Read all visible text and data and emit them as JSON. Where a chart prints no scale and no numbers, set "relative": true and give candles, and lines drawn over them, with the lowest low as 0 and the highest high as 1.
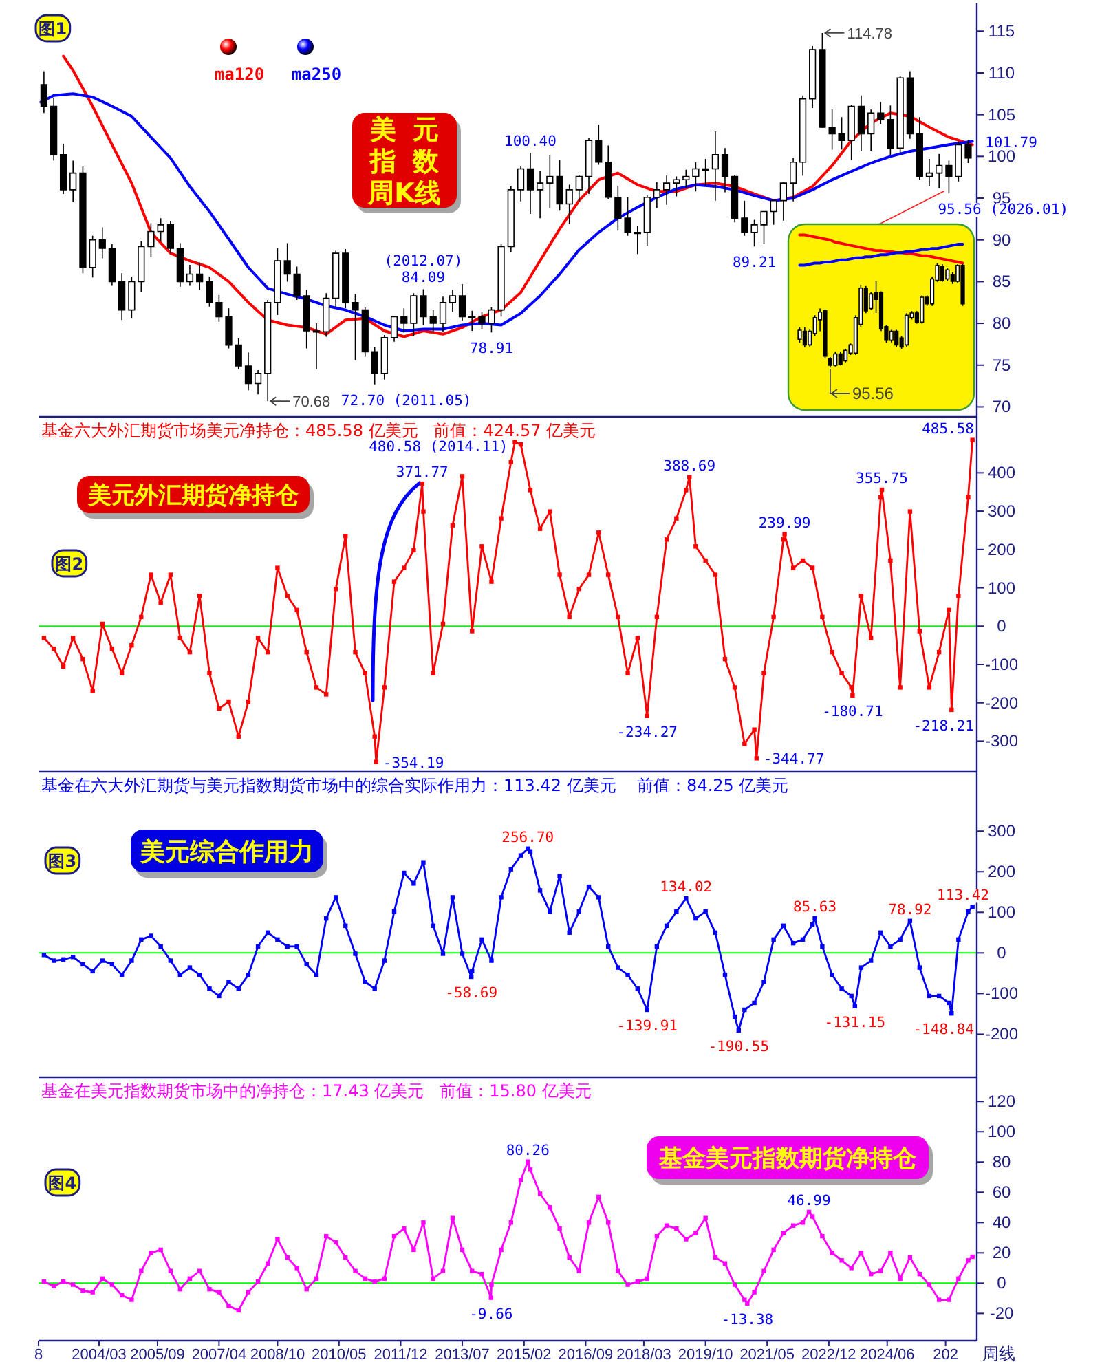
{
  "chart_data": [
    {
      "type": "candlestick",
      "title": "美元指数周K线",
      "legend": "top left",
      "tick_labels": "y",
      "xlim": [
        "2002-08-11",
        "2026-09-20"
      ],
      "ylim": [
        68.8,
        118.4
      ],
      "yticks": [
        70,
        75,
        80,
        85,
        90,
        95,
        100,
        105,
        110,
        115
      ],
      "x": [
        "2002-10",
        "2003-01",
        "2003-04",
        "2003-07",
        "2003-10",
        "2004-01",
        "2004-04",
        "2004-07",
        "2004-10",
        "2005-01",
        "2005-04",
        "2005-07",
        "2005-10",
        "2006-01",
        "2006-04",
        "2006-07",
        "2006-10",
        "2007-01",
        "2007-04",
        "2007-07",
        "2007-10",
        "2008-01",
        "2008-04",
        "2008-07",
        "2008-10",
        "2009-01",
        "2009-04",
        "2009-07",
        "2009-10",
        "2010-01",
        "2010-04",
        "2010-07",
        "2010-10",
        "2011-01",
        "2011-04",
        "2011-07",
        "2011-10",
        "2012-01",
        "2012-04",
        "2012-07",
        "2012-10",
        "2013-01",
        "2013-04",
        "2013-07",
        "2013-10",
        "2014-01",
        "2014-04",
        "2014-07",
        "2014-10",
        "2015-01",
        "2015-04",
        "2015-07",
        "2015-10",
        "2016-01",
        "2016-04",
        "2016-07",
        "2016-10",
        "2017-01",
        "2017-04",
        "2017-07",
        "2017-10",
        "2018-01",
        "2018-04",
        "2018-07",
        "2018-10",
        "2019-01",
        "2019-04",
        "2019-07",
        "2019-10",
        "2020-01",
        "2020-04",
        "2020-07",
        "2020-10",
        "2021-01",
        "2021-04",
        "2021-07",
        "2021-10",
        "2022-01",
        "2022-04",
        "2022-07",
        "2022-10",
        "2023-01",
        "2023-04",
        "2023-07",
        "2023-10",
        "2024-01",
        "2024-04",
        "2024-07",
        "2024-10",
        "2025-01",
        "2025-04",
        "2025-07",
        "2025-10",
        "2026-01",
        "2026-04",
        "2026-07"
      ],
      "ohlc": [
        [
          108.6,
          110.2,
          105.2,
          106
        ],
        [
          106,
          107,
          99.5,
          100.2
        ],
        [
          100.2,
          101.5,
          95.5,
          96
        ],
        [
          96,
          99.5,
          94.5,
          98
        ],
        [
          98,
          98.8,
          86,
          86.7
        ],
        [
          86.7,
          90.5,
          85.5,
          90
        ],
        [
          90,
          91.5,
          87.8,
          89
        ],
        [
          89,
          89.5,
          84.5,
          85
        ],
        [
          85,
          86,
          80.4,
          81.6
        ],
        [
          81.6,
          85.6,
          80.6,
          85
        ],
        [
          85,
          89.8,
          83.8,
          89.2
        ],
        [
          89.2,
          92,
          88,
          91
        ],
        [
          91,
          92.6,
          89.8,
          91.8
        ],
        [
          91.8,
          92.2,
          88.4,
          89
        ],
        [
          89,
          89.6,
          84.4,
          85
        ],
        [
          85,
          87,
          84.5,
          85.9
        ],
        [
          85.9,
          87.3,
          84,
          85
        ],
        [
          85,
          85.6,
          82,
          82.5
        ],
        [
          82.5,
          83.4,
          80.2,
          80.8
        ],
        [
          80.8,
          81.8,
          77,
          77.4
        ],
        [
          77.4,
          78.2,
          74.5,
          74.9
        ],
        [
          74.9,
          76.5,
          72,
          72.8
        ],
        [
          72.8,
          74.4,
          71.5,
          74
        ],
        [
          74,
          82.8,
          70.68,
          82.5
        ],
        [
          82.5,
          89,
          81,
          87.5
        ],
        [
          87.5,
          89.6,
          85,
          85.9
        ],
        [
          85.9,
          86.8,
          82.8,
          83.3
        ],
        [
          83.3,
          84,
          77,
          79.1
        ],
        [
          79.1,
          80,
          74.5,
          79
        ],
        [
          79,
          83.6,
          78.4,
          83
        ],
        [
          83,
          88.7,
          82,
          88.4
        ],
        [
          88.4,
          88.9,
          81.8,
          82.5
        ],
        [
          82.5,
          83.5,
          75.6,
          81.6
        ],
        [
          81.6,
          81.9,
          76,
          76.6
        ],
        [
          76.6,
          77.2,
          72.7,
          74
        ],
        [
          74,
          78.6,
          73.3,
          78.3
        ],
        [
          78.3,
          80.9,
          77.8,
          80.8
        ],
        [
          80.8,
          81.8,
          78.9,
          80
        ],
        [
          80,
          83.6,
          78.5,
          83.3
        ],
        [
          83.3,
          84.09,
          79.8,
          80.8
        ],
        [
          80.8,
          81.6,
          78.9,
          80
        ],
        [
          80,
          83.2,
          79,
          82.5
        ],
        [
          82.5,
          84,
          81.4,
          83.3
        ],
        [
          83.3,
          84.7,
          80.3,
          80.8
        ],
        [
          80.8,
          81.5,
          79.1,
          80.8
        ],
        [
          80.8,
          81.4,
          79.3,
          80
        ],
        [
          80,
          81.9,
          78.91,
          81.6
        ],
        [
          81.6,
          89.5,
          80.8,
          89.2
        ],
        [
          89.2,
          96.4,
          88.5,
          96
        ],
        [
          96,
          98.8,
          94.6,
          98.5
        ],
        [
          98.5,
          100.4,
          93.1,
          96
        ],
        [
          96,
          98.3,
          92.6,
          96.8
        ],
        [
          96.8,
          100.2,
          93.8,
          97.6
        ],
        [
          97.6,
          99.6,
          93.5,
          94.3
        ],
        [
          94.3,
          96.6,
          91.9,
          96
        ],
        [
          96,
          97.8,
          94.5,
          97.6
        ],
        [
          97.6,
          102.2,
          95.5,
          101.9
        ],
        [
          101.9,
          103.8,
          99,
          99.3
        ],
        [
          99.3,
          101.3,
          94.9,
          95.1
        ],
        [
          95.1,
          96.5,
          91.1,
          92.6
        ],
        [
          92.6,
          95.1,
          90.5,
          90.9
        ],
        [
          90.9,
          91.7,
          88.3,
          90.9
        ],
        [
          90.9,
          95.4,
          89.3,
          95.1
        ],
        [
          95.1,
          96.9,
          93.8,
          96
        ],
        [
          96,
          97.7,
          94.2,
          96.8
        ],
        [
          96.8,
          97.6,
          95.2,
          97.2
        ],
        [
          97.2,
          98.4,
          96.2,
          97.6
        ],
        [
          97.6,
          99.3,
          95.8,
          98.5
        ],
        [
          98.5,
          99.7,
          96.5,
          98.5
        ],
        [
          98.5,
          102.99,
          94.7,
          100.2
        ],
        [
          100.2,
          101,
          95.7,
          97.6
        ],
        [
          97.6,
          97.8,
          92.1,
          92.6
        ],
        [
          92.6,
          94.7,
          90.5,
          90.9
        ],
        [
          90.9,
          92.4,
          89.21,
          91.8
        ],
        [
          91.8,
          93.4,
          89.5,
          93.4
        ],
        [
          93.4,
          94.8,
          91.8,
          94.7
        ],
        [
          94.7,
          96.9,
          92.3,
          96.8
        ],
        [
          96.8,
          99.8,
          94.6,
          99.3
        ],
        [
          99.3,
          107.3,
          97.7,
          106.9
        ],
        [
          106.9,
          113.2,
          105.8,
          112.8
        ],
        [
          112.8,
          114.78,
          103.4,
          103.5
        ],
        [
          103.5,
          105.6,
          100.8,
          102.7
        ],
        [
          102.7,
          104.7,
          100.8,
          101.9
        ],
        [
          101.9,
          106.2,
          99.6,
          106
        ],
        [
          106,
          107.3,
          100.6,
          102.7
        ],
        [
          102.7,
          105.6,
          100.6,
          105.2
        ],
        [
          105.2,
          106.5,
          103.9,
          104.4
        ],
        [
          104.4,
          106.1,
          100.2,
          101
        ],
        [
          101,
          109.6,
          100.4,
          109.4
        ],
        [
          109.4,
          110.2,
          102.1,
          102.7
        ],
        [
          102.7,
          104.7,
          97.2,
          97.6
        ],
        [
          97.6,
          99.7,
          96.4,
          98
        ],
        [
          98,
          100.3,
          96.2,
          98.9
        ],
        [
          98.9,
          99.5,
          95.56,
          97.6
        ],
        [
          97.6,
          101.8,
          97,
          101.4
        ],
        [
          101.4,
          102,
          99.2,
          99.8
        ]
      ],
      "series": [
        {
          "name": "ma120",
          "type": "line",
          "color": "#ff0000",
          "x": [
            "2003-04",
            "2003-07",
            "2004-01",
            "2004-07",
            "2005-01",
            "2005-07",
            "2006-01",
            "2006-07",
            "2007-01",
            "2007-07",
            "2008-01",
            "2008-07",
            "2009-01",
            "2009-07",
            "2010-01",
            "2010-07",
            "2011-01",
            "2011-07",
            "2012-01",
            "2012-07",
            "2013-01",
            "2013-07",
            "2014-01",
            "2014-07",
            "2015-01",
            "2015-07",
            "2016-01",
            "2016-07",
            "2017-01",
            "2017-07",
            "2018-01",
            "2018-07",
            "2019-01",
            "2019-07",
            "2020-01",
            "2020-07",
            "2021-01",
            "2021-07",
            "2022-01",
            "2022-07",
            "2023-01",
            "2023-07",
            "2024-01",
            "2024-07",
            "2025-01",
            "2025-07",
            "2026-01",
            "2026-08-10"
          ],
          "values": [
            112,
            110.3,
            106,
            101.4,
            96.8,
            90.9,
            88.4,
            87.5,
            86.7,
            85,
            82.5,
            80.4,
            79.8,
            79.5,
            78.7,
            80.4,
            80.6,
            79.1,
            78.4,
            79.1,
            78.7,
            79.5,
            80.8,
            81.6,
            83.7,
            87.5,
            91.3,
            94.7,
            97.2,
            98,
            96.6,
            95.8,
            95.8,
            96.6,
            96.8,
            96.4,
            95.5,
            94.7,
            95.1,
            96.4,
            98.9,
            101.9,
            104,
            105.2,
            104.8,
            103.5,
            102.3,
            101.4
          ]
        },
        {
          "name": "ma250",
          "type": "line",
          "color": "#0000ff",
          "x": [
            "2002-09",
            "2003-01",
            "2003-07",
            "2004-01",
            "2004-07",
            "2005-01",
            "2005-07",
            "2006-01",
            "2006-07",
            "2007-01",
            "2007-07",
            "2008-01",
            "2008-07",
            "2009-01",
            "2009-07",
            "2010-01",
            "2010-07",
            "2011-01",
            "2011-07",
            "2012-01",
            "2012-07",
            "2013-01",
            "2013-07",
            "2014-01",
            "2014-07",
            "2015-01",
            "2015-07",
            "2016-01",
            "2016-07",
            "2017-01",
            "2017-07",
            "2018-01",
            "2018-07",
            "2019-01",
            "2019-07",
            "2020-01",
            "2020-07",
            "2021-01",
            "2021-07",
            "2022-01",
            "2022-07",
            "2023-01",
            "2023-07",
            "2024-01",
            "2024-07",
            "2025-01",
            "2025-07",
            "2026-01",
            "2026-08-10"
          ],
          "values": [
            106.5,
            107.3,
            107.5,
            107.1,
            106,
            104.8,
            102.3,
            99.8,
            96.4,
            93.4,
            90.1,
            86.7,
            84.2,
            83.5,
            82.9,
            82.1,
            81.6,
            80.8,
            79.8,
            79.1,
            79.3,
            79.3,
            79.8,
            80,
            79.8,
            81.2,
            83.3,
            85.9,
            88.8,
            90.9,
            92.6,
            93.9,
            95.1,
            96.1,
            96.6,
            96.4,
            96,
            95.3,
            94.7,
            95,
            96,
            97.2,
            98.2,
            99.2,
            100,
            100.6,
            101,
            101.4,
            101.79
          ]
        }
      ],
      "annotations": [
        "图1",
        {
          "text": "114.78",
          "x": "2022-10",
          "y": 114.78
        },
        {
          "text": "100.40",
          "x": "2015-04",
          "y": 100.4
        },
        {
          "text": "(2012.07)\n84.09",
          "x": "2012-07",
          "y": 84.09
        },
        {
          "text": "78.91",
          "x": "2014-04",
          "y": 78.91
        },
        {
          "text": "70.68",
          "x": "2008-07",
          "y": 70.68
        },
        {
          "text": "72.70 (2011.05)",
          "x": "2011-04",
          "y": 72.7
        },
        {
          "text": "89.21",
          "x": "2021-01",
          "y": 89.21
        },
        {
          "text": "101.79",
          "x": "2026-08-10",
          "y": 101.79
        },
        {
          "text": "95.56 (2026.01)",
          "x": "2026-01",
          "y": 95.56
        }
      ]
    },
    {
      "type": "candlestick",
      "relative": true,
      "categories": [
        null,
        null,
        null,
        null,
        null,
        null,
        null,
        null,
        null,
        null,
        null,
        null,
        null,
        null,
        null,
        null,
        null,
        null,
        null,
        null,
        null,
        null,
        null,
        null,
        null,
        null,
        null,
        null,
        null,
        null,
        null,
        null,
        null
      ],
      "ohlc": [
        [
          0.27,
          0.383,
          0.239,
          0.357
        ],
        [
          0.348,
          0.383,
          0.196,
          0.217
        ],
        [
          0.217,
          0.37,
          0.2,
          0.348
        ],
        [
          0.326,
          0.5,
          0.304,
          0.478
        ],
        [
          0.457,
          0.565,
          0.348,
          0.53
        ],
        [
          0.543,
          0.557,
          0.087,
          0.109
        ],
        [
          0.087,
          0.1,
          0,
          0.022
        ],
        [
          0.022,
          0.15,
          0.01,
          0.13
        ],
        [
          0.13,
          0.15,
          0.02,
          0.03
        ],
        [
          0.065,
          0.18,
          0.05,
          0.165
        ],
        [
          0.139,
          0.23,
          0.12,
          0.217
        ],
        [
          0.139,
          0.5,
          0.12,
          0.478
        ],
        [
          0.413,
          0.791,
          0.391,
          0.761
        ],
        [
          0.761,
          0.78,
          0.52,
          0.543
        ],
        [
          0.565,
          0.72,
          0.55,
          0.704
        ],
        [
          0.717,
          0.826,
          0.522,
          0.652
        ],
        [
          0.717,
          0.73,
          0.35,
          0.37
        ],
        [
          0.391,
          0.41,
          0.239,
          0.261
        ],
        [
          0.261,
          0.36,
          0.24,
          0.348
        ],
        [
          0.348,
          0.36,
          0.2,
          0.217
        ],
        [
          0.283,
          0.3,
          0.18,
          0.196
        ],
        [
          0.217,
          0.52,
          0.2,
          0.5
        ],
        [
          0.478,
          0.54,
          0.46,
          0.522
        ],
        [
          0.522,
          0.54,
          0.42,
          0.435
        ],
        [
          0.435,
          0.69,
          0.42,
          0.674
        ],
        [
          0.674,
          0.69,
          0.59,
          0.609
        ],
        [
          0.609,
          0.87,
          0.59,
          0.848
        ],
        [
          0.835,
          1,
          0.82,
          0.978
        ],
        [
          0.965,
          0.99,
          0.82,
          0.835
        ],
        [
          0.848,
          0.95,
          0.83,
          0.935
        ],
        [
          0.891,
          0.91,
          0.8,
          0.826
        ],
        [
          0.826,
          0.99,
          0.81,
          0.978
        ],
        [
          0.978,
          0.99,
          0.59,
          0.609
        ]
      ],
      "series": [
        {
          "type": "line",
          "color": "#ff0000",
          "values": [
            1.27,
            1.27,
            1.26,
            1.25,
            1.24,
            1.23,
            1.22,
            1.2,
            1.19,
            1.18,
            1.17,
            1.16,
            1.15,
            1.14,
            1.13,
            1.12,
            1.12,
            1.11,
            1.11,
            1.1,
            1.1,
            1.09,
            1.09,
            1.08,
            1.07,
            1.07,
            1.06,
            1.05,
            1.04,
            1.03,
            1.02,
            1.01,
            1
          ]
        },
        {
          "type": "line",
          "color": "#0000ff",
          "values": [
            0.98,
            0.98,
            0.99,
            1,
            1,
            1.01,
            1.01,
            1.02,
            1.03,
            1.03,
            1.04,
            1.05,
            1.05,
            1.06,
            1.06,
            1.07,
            1.08,
            1.08,
            1.09,
            1.1,
            1.1,
            1.11,
            1.11,
            1.12,
            1.13,
            1.13,
            1.14,
            1.14,
            1.15,
            1.16,
            1.17,
            1.18,
            1.18
          ]
        }
      ],
      "annotations": [
        "95.56"
      ]
    },
    {
      "type": "line",
      "title": "美元外汇期货净持仓",
      "subtitle": "基金六大外汇期货市场美元净持仓：485.58 亿美元   前值：424.57 亿美元",
      "marker": "square",
      "tick_labels": "y",
      "xlim": [
        "2002-08-11",
        "2026-09-20"
      ],
      "ylim": [
        -380,
        546
      ],
      "yticks": [
        -300,
        -200,
        -100,
        0,
        100,
        200,
        300,
        400
      ],
      "ref_lines": [
        {
          "axis": "y",
          "value": 0,
          "color": "#00ff00"
        }
      ],
      "x": [
        "2002-10",
        "2003-01",
        "2003-04",
        "2003-07",
        "2003-10",
        "2004-01",
        "2004-04",
        "2004-07",
        "2004-10",
        "2005-01",
        "2005-04",
        "2005-07",
        "2005-10",
        "2006-01",
        "2006-04",
        "2006-07",
        "2006-10",
        "2007-01",
        "2007-04",
        "2007-07",
        "2007-10",
        "2008-01",
        "2008-04",
        "2008-07",
        "2008-10",
        "2009-01",
        "2009-04",
        "2009-07",
        "2009-10",
        "2010-01",
        "2010-04",
        "2010-07",
        "2010-10",
        "2011-01",
        "2011-04",
        "2011-04-15",
        "2011-07",
        "2011-10",
        "2012-01",
        "2012-04",
        "2012-06-20",
        "2012-07",
        "2012-10",
        "2013-01",
        "2013-04",
        "2013-07",
        "2013-10",
        "2014-01",
        "2014-04",
        "2014-07",
        "2014-10",
        "2014-11-07",
        "2015-01",
        "2015-04",
        "2015-07",
        "2015-10",
        "2016-01",
        "2016-04",
        "2016-07",
        "2016-10",
        "2017-01",
        "2017-04",
        "2017-07",
        "2017-10",
        "2018-01",
        "2018-04",
        "2018-07",
        "2018-10",
        "2019-01",
        "2019-04",
        "2019-05-03",
        "2019-07",
        "2019-10",
        "2020-01",
        "2020-04",
        "2020-07",
        "2020-10",
        "2021-01",
        "2021-01-22",
        "2021-04",
        "2021-07",
        "2021-10",
        "2021-10-12",
        "2022-01",
        "2022-04",
        "2022-07",
        "2022-10",
        "2023-01",
        "2023-04",
        "2023-07",
        "2023-07-12",
        "2023-10",
        "2024-01",
        "2024-04",
        "2024-04-12",
        "2024-07",
        "2024-10",
        "2025-01",
        "2025-04",
        "2025-07",
        "2025-10",
        "2026-01",
        "2026-01-26",
        "2026-04",
        "2026-07",
        "2026-08-10"
      ],
      "series": [
        {
          "color": "#ff0000",
          "values": [
            -31,
            -59,
            -105,
            -31,
            -86,
            -169,
            6,
            -59,
            -123,
            -50,
            24,
            134,
            61,
            134,
            -31,
            -68,
            79,
            -123,
            -215,
            -197,
            -288,
            -197,
            -31,
            -68,
            152,
            79,
            42,
            -68,
            -160,
            -178,
            97,
            235,
            -68,
            -123,
            -288,
            -354.19,
            -160,
            116,
            152,
            198,
            371.77,
            299,
            -123,
            6,
            263,
            391,
            -13,
            208,
            116,
            281,
            428,
            480.58,
            474,
            355,
            254,
            299,
            134,
            24,
            97,
            134,
            244,
            134,
            24,
            -123,
            -31,
            -234.27,
            24,
            226,
            281,
            355,
            388.69,
            208,
            171,
            134,
            -86,
            -160,
            -307,
            -270,
            -344.77,
            -123,
            24,
            226,
            239.99,
            152,
            171,
            152,
            24,
            -68,
            -123,
            -160,
            -180.71,
            79,
            -31,
            336,
            355.75,
            171,
            -160,
            299,
            -13,
            -160,
            -68,
            42,
            -218.21,
            79,
            336,
            485.58
          ]
        }
      ],
      "annotations": [
        "图2",
        {
          "text": "371.77",
          "x": "2012-06-20",
          "y": 371.77
        },
        {
          "text": "480.58 (2014.11)",
          "x": "2014-11-07",
          "y": 480.58
        },
        {
          "text": "388.69",
          "x": "2019-05-03",
          "y": 388.69
        },
        {
          "text": "239.99",
          "x": "2021-10-12",
          "y": 239.99
        },
        {
          "text": "355.75",
          "x": "2024-04-12",
          "y": 355.75
        },
        {
          "text": "485.58",
          "x": "2026-08-10",
          "y": 485.58
        },
        {
          "text": "-354.19",
          "x": "2011-04-15",
          "y": -354.19
        },
        {
          "text": "-234.27",
          "x": "2018-04",
          "y": -234.27
        },
        {
          "text": "-344.77",
          "x": "2021-01-22",
          "y": -344.77
        },
        {
          "text": "-180.71",
          "x": "2023-07-12",
          "y": -180.71
        },
        {
          "text": "-218.21",
          "x": "2026-01-26",
          "y": -218.21
        }
      ]
    },
    {
      "type": "line",
      "title": "美元综合作用力",
      "subtitle": "基金在六大外汇期货与美元指数期货市场中的综合实际作用力：113.42 亿美元    前值：84.25 亿美元",
      "marker": "square",
      "tick_labels": "y",
      "xlim": [
        "2002-08-11",
        "2026-09-20"
      ],
      "ylim": [
        -306,
        446
      ],
      "yticks": [
        -200,
        -100,
        0,
        100,
        200,
        300
      ],
      "ref_lines": [
        {
          "axis": "y",
          "value": 0,
          "color": "#00ff00"
        }
      ],
      "x": [
        "2002-10",
        "2003-01",
        "2003-04",
        "2003-07",
        "2003-10",
        "2004-01",
        "2004-04",
        "2004-07",
        "2004-10",
        "2005-01",
        "2005-04",
        "2005-07",
        "2005-10",
        "2006-01",
        "2006-04",
        "2006-07",
        "2006-10",
        "2007-01",
        "2007-04",
        "2007-07",
        "2007-10",
        "2008-01",
        "2008-04",
        "2008-07",
        "2008-10",
        "2009-01",
        "2009-04",
        "2009-07",
        "2009-10",
        "2010-01",
        "2010-04",
        "2010-07",
        "2010-10",
        "2011-01",
        "2011-04",
        "2011-07",
        "2011-10",
        "2012-01",
        "2012-04",
        "2012-07",
        "2012-10",
        "2013-01",
        "2013-04",
        "2013-07",
        "2013-09-24",
        "2013-10",
        "2014-01",
        "2014-04",
        "2014-07",
        "2014-10",
        "2015-01",
        "2015-03-08",
        "2015-04",
        "2015-07",
        "2015-10",
        "2016-01",
        "2016-04",
        "2016-07",
        "2016-10",
        "2017-01",
        "2017-04",
        "2017-07",
        "2017-10",
        "2018-01",
        "2018-04",
        "2018-07",
        "2018-10",
        "2019-01",
        "2019-04",
        "2019-07",
        "2019-10",
        "2020-01",
        "2020-04",
        "2020-07",
        "2020-08-07",
        "2020-10",
        "2021-01",
        "2021-04",
        "2021-07",
        "2021-10",
        "2022-01",
        "2022-04",
        "2022-07",
        "2022-07-23",
        "2022-10",
        "2023-01",
        "2023-04",
        "2023-07",
        "2023-08-03",
        "2023-10",
        "2024-01",
        "2024-04",
        "2024-07",
        "2024-10",
        "2025-01",
        "2025-04",
        "2025-07",
        "2025-10",
        "2026-01",
        "2026-01-26",
        "2026-04",
        "2026-07",
        "2026-08-10"
      ],
      "series": [
        {
          "color": "#0000ff",
          "values": [
            -5,
            -19,
            -16,
            -10,
            -28,
            -45,
            -19,
            -28,
            -54,
            -19,
            33,
            42,
            16,
            -19,
            -54,
            -36,
            -54,
            -88,
            -106,
            -71,
            -88,
            -54,
            16,
            50,
            33,
            16,
            16,
            -28,
            -54,
            85,
            137,
            67,
            -2,
            -71,
            -88,
            -19,
            102,
            197,
            171,
            223,
            67,
            -2,
            137,
            -2,
            -58.69,
            -45,
            33,
            -19,
            137,
            206,
            240,
            256.7,
            250,
            154,
            102,
            189,
            50,
            102,
            163,
            137,
            16,
            -36,
            -54,
            -88,
            -139.91,
            16,
            67,
            102,
            134.02,
            85,
            102,
            50,
            -54,
            -157,
            -190.55,
            -140,
            -123,
            -71,
            33,
            67,
            24,
            33,
            70,
            85.63,
            16,
            -54,
            -88,
            -106,
            -131.15,
            -36,
            -19,
            50,
            16,
            33,
            78.92,
            -36,
            -106,
            -106,
            -123,
            -148.84,
            33,
            102,
            113.42
          ]
        }
      ],
      "annotations": [
        "图3",
        {
          "text": "256.70",
          "x": "2015-03-08",
          "y": 256.7
        },
        {
          "text": "134.02",
          "x": "2019-04",
          "y": 134.02
        },
        {
          "text": "85.63",
          "x": "2022-07-23",
          "y": 85.63
        },
        {
          "text": "78.92",
          "x": "2025-01",
          "y": 78.92
        },
        {
          "text": "113.42",
          "x": "2026-08-10",
          "y": 113.42
        },
        {
          "text": "-58.69",
          "x": "2013-09-24",
          "y": -58.69
        },
        {
          "text": "-139.91",
          "x": "2018-04",
          "y": -139.91
        },
        {
          "text": "-190.55",
          "x": "2020-08-07",
          "y": -190.55
        },
        {
          "text": "-131.15",
          "x": "2023-08-03",
          "y": -131.15
        },
        {
          "text": "-148.84",
          "x": "2026-01-26",
          "y": -148.84
        }
      ]
    },
    {
      "type": "line",
      "title": "基金美元指数期货净持仓",
      "subtitle": "基金在美元指数期货市场中的净持仓：17.43 亿美元   前值：15.80 亿美元",
      "xlabel": "周线",
      "marker": "square",
      "xlim": [
        "2002-08-11",
        "2026-09-20"
      ],
      "ylim": [
        -38,
        136
      ],
      "yticks": [
        -20,
        0,
        20,
        40,
        60,
        80,
        100,
        120
      ],
      "ref_lines": [
        {
          "axis": "y",
          "value": 0,
          "color": "#00ff00"
        }
      ],
      "xticks": [
        {
          "value": "2002-08-11",
          "label": "8"
        },
        {
          "value": "2004-03",
          "label": "2004/03"
        },
        {
          "value": "2005-09",
          "label": "2005/09"
        },
        {
          "value": "2007-04",
          "label": "2007/04"
        },
        {
          "value": "2008-10",
          "label": "2008/10"
        },
        {
          "value": "2010-05",
          "label": "2010/05"
        },
        {
          "value": "2011-12",
          "label": "2011/12"
        },
        {
          "value": "2013-07",
          "label": "2013/07"
        },
        {
          "value": "2015-02",
          "label": "2015/02"
        },
        {
          "value": "2016-09",
          "label": "2016/09"
        },
        {
          "value": "2018-03",
          "label": "2018/03"
        },
        {
          "value": "2019-10",
          "label": "2019/10"
        },
        {
          "value": "2021-05",
          "label": "2021/05"
        },
        {
          "value": "2022-12",
          "label": "2022/12"
        },
        {
          "value": "2024-06",
          "label": "2024/06"
        },
        {
          "value": "2025-12",
          "label": "202"
        }
      ],
      "x": [
        "2002-10",
        "2003-01",
        "2003-04",
        "2003-07",
        "2003-10",
        "2004-01",
        "2004-04",
        "2004-07",
        "2004-10",
        "2005-01",
        "2005-04",
        "2005-07",
        "2005-10",
        "2006-01",
        "2006-04",
        "2006-07",
        "2006-10",
        "2007-01",
        "2007-04",
        "2007-07",
        "2007-10",
        "2008-01",
        "2008-04",
        "2008-07",
        "2008-10",
        "2009-01",
        "2009-04",
        "2009-07",
        "2009-10",
        "2010-01",
        "2010-04",
        "2010-07",
        "2010-10",
        "2011-01",
        "2011-04",
        "2011-07",
        "2011-10",
        "2012-01",
        "2012-04",
        "2012-07",
        "2012-10",
        "2013-01",
        "2013-04",
        "2013-07",
        "2013-10",
        "2014-01",
        "2014-03-28",
        "2014-04",
        "2014-07",
        "2014-10",
        "2015-01",
        "2015-03-08",
        "2015-04",
        "2015-07",
        "2015-10",
        "2016-01",
        "2016-04",
        "2016-07",
        "2016-10",
        "2017-01",
        "2017-04",
        "2017-07",
        "2017-10",
        "2018-01",
        "2018-04",
        "2018-07",
        "2018-10",
        "2019-01",
        "2019-04",
        "2019-07",
        "2019-10",
        "2020-01",
        "2020-04",
        "2020-07",
        "2020-10",
        "2020-10-27",
        "2021-01",
        "2021-04",
        "2021-07",
        "2021-10",
        "2022-01",
        "2022-04",
        "2022-05-29",
        "2022-07",
        "2022-10",
        "2023-01",
        "2023-04",
        "2023-07",
        "2023-10",
        "2024-01",
        "2024-04",
        "2024-07",
        "2024-10",
        "2025-01",
        "2025-04",
        "2025-07",
        "2025-10",
        "2026-01",
        "2026-04",
        "2026-07",
        "2026-08-10"
      ],
      "series": [
        {
          "color": "#ff00ff",
          "values": [
            1,
            -2,
            1,
            -1,
            -5,
            -6,
            3,
            -1,
            -8,
            -11,
            8,
            20,
            22,
            8,
            -4,
            3,
            8,
            -4,
            -6,
            -15,
            -18,
            -6,
            1,
            13,
            29,
            17,
            10,
            -4,
            3,
            31,
            27,
            17,
            8,
            3,
            1,
            3,
            31,
            36,
            22,
            40,
            3,
            8,
            43,
            22,
            8,
            6,
            -9.66,
            -1,
            22,
            40,
            68,
            80.26,
            75,
            59,
            50,
            36,
            17,
            8,
            40,
            57,
            40,
            8,
            -1,
            1,
            3,
            31,
            38,
            36,
            29,
            33,
            43,
            17,
            13,
            -1,
            -11,
            -13.38,
            -6,
            8,
            22,
            33,
            38,
            40,
            46.99,
            44,
            31,
            20,
            15,
            10,
            20,
            6,
            8,
            20,
            3,
            17,
            6,
            -1,
            -11,
            -11,
            3,
            15,
            17.43
          ]
        }
      ],
      "annotations": [
        "图4",
        {
          "text": "80.26",
          "x": "2015-03-08",
          "y": 80.26
        },
        {
          "text": "46.99",
          "x": "2022-05-29",
          "y": 46.99
        },
        {
          "text": "-9.66",
          "x": "2014-03-28",
          "y": -9.66
        },
        {
          "text": "-13.38",
          "x": "2020-10-27",
          "y": -13.38
        }
      ]
    }
  ]
}
